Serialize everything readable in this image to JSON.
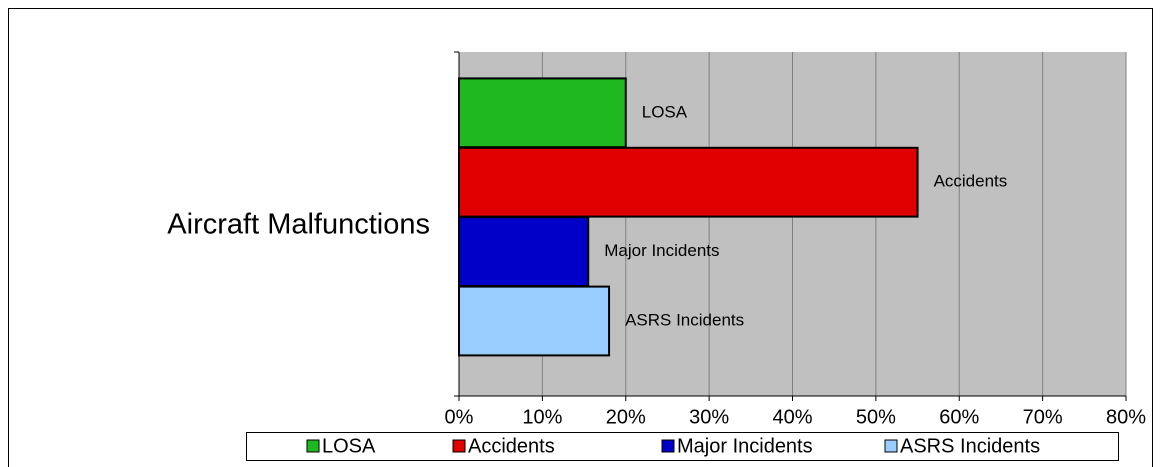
{
  "chart_data": {
    "type": "bar",
    "orientation": "horizontal",
    "categories": [
      "Aircraft Malfunctions"
    ],
    "series": [
      {
        "name": "LOSA",
        "color": "#20b820",
        "values": [
          20
        ]
      },
      {
        "name": "Accidents",
        "color": "#e00000",
        "values": [
          55
        ]
      },
      {
        "name": "Major Incidents",
        "color": "#0000c8",
        "values": [
          15.5
        ]
      },
      {
        "name": "ASRS Incidents",
        "color": "#99ccff",
        "values": [
          18
        ]
      }
    ],
    "xlim": [
      0,
      80
    ],
    "xticks": [
      {
        "value": 0,
        "label": "0%"
      },
      {
        "value": 10,
        "label": "10%"
      },
      {
        "value": 20,
        "label": "20%"
      },
      {
        "value": 30,
        "label": "30%"
      },
      {
        "value": 40,
        "label": "40%"
      },
      {
        "value": 50,
        "label": "50%"
      },
      {
        "value": 60,
        "label": "60%"
      },
      {
        "value": 70,
        "label": "70%"
      },
      {
        "value": 80,
        "label": "80%"
      }
    ],
    "grid": true,
    "legend": "bottom"
  }
}
